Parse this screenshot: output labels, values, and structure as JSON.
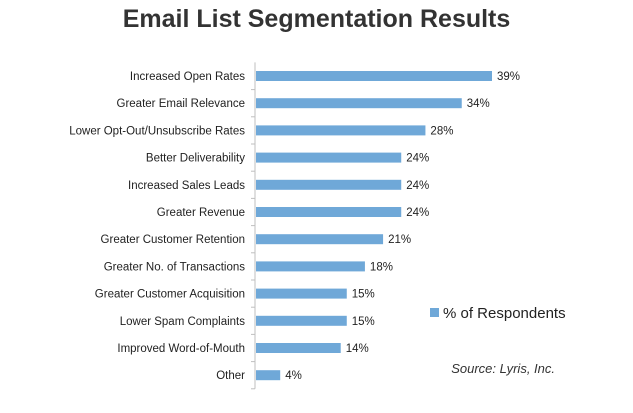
{
  "chart_data": {
    "type": "bar",
    "orientation": "horizontal",
    "title": "Email List Segmentation Results",
    "categories": [
      "Increased Open Rates",
      "Greater Email Relevance",
      "Lower Opt-Out/Unsubscribe Rates",
      "Better Deliverability",
      "Increased Sales Leads",
      "Greater Revenue",
      "Greater Customer Retention",
      "Greater No. of Transactions",
      "Greater Customer Acquisition",
      "Lower Spam Complaints",
      "Improved Word-of-Mouth",
      "Other"
    ],
    "series": [
      {
        "name": "% of Respondents",
        "values": [
          39,
          34,
          28,
          24,
          24,
          24,
          21,
          18,
          15,
          15,
          14,
          4
        ],
        "value_labels": [
          "39%",
          "34%",
          "28%",
          "24%",
          "24%",
          "24%",
          "21%",
          "18%",
          "15%",
          "15%",
          "14%",
          "4%"
        ]
      }
    ],
    "xlim": [
      0,
      39
    ],
    "grid": false,
    "legend_position": "right",
    "bar_color": "#6fa8d8",
    "annotation": "Source: Lyris, Inc."
  }
}
